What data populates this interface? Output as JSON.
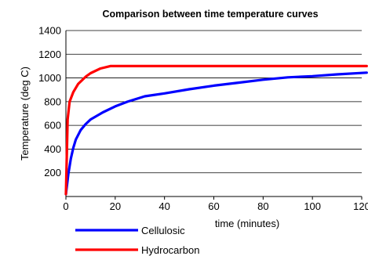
{
  "chart_data": {
    "type": "line",
    "title": "Comparison between time temperature curves",
    "xlabel": "time (minutes)",
    "ylabel": "Temperature (deg C)",
    "xlim": [
      0,
      120
    ],
    "ylim": [
      0,
      1400
    ],
    "x_ticks": [
      "0",
      "20",
      "40",
      "60",
      "80",
      "100",
      "120"
    ],
    "y_ticks": [
      "200",
      "400",
      "600",
      "800",
      "1000",
      "1200",
      "1400"
    ],
    "grid": "horizontal",
    "legend_position": "bottom-left",
    "series": [
      {
        "name": "Cellulosic",
        "color": "#0000ff",
        "points": [
          [
            0,
            20
          ],
          [
            1,
            190
          ],
          [
            2,
            320
          ],
          [
            3,
            410
          ],
          [
            4,
            480
          ],
          [
            6,
            560
          ],
          [
            8,
            610
          ],
          [
            10,
            650
          ],
          [
            15,
            710
          ],
          [
            20,
            760
          ],
          [
            25,
            800
          ],
          [
            32,
            845
          ],
          [
            40,
            870
          ],
          [
            50,
            905
          ],
          [
            60,
            935
          ],
          [
            70,
            960
          ],
          [
            80,
            985
          ],
          [
            90,
            1005
          ],
          [
            100,
            1015
          ],
          [
            110,
            1030
          ],
          [
            122,
            1045
          ]
        ]
      },
      {
        "name": "Hydrocarbon",
        "color": "#ff0000",
        "points": [
          [
            0,
            20
          ],
          [
            0.7,
            650
          ],
          [
            1.5,
            800
          ],
          [
            3,
            880
          ],
          [
            5,
            950
          ],
          [
            8,
            1010
          ],
          [
            10,
            1040
          ],
          [
            14,
            1080
          ],
          [
            18,
            1100
          ],
          [
            20,
            1100
          ],
          [
            122,
            1100
          ]
        ]
      }
    ]
  }
}
